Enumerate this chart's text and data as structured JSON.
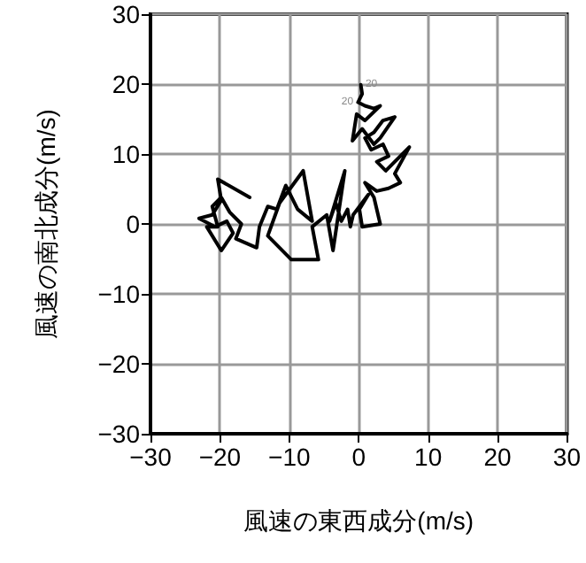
{
  "chart_data": {
    "type": "line",
    "xlabel": "風速の東西成分(m/s)",
    "ylabel": "風速の南北成分(m/s)",
    "xlim": [
      -30,
      30
    ],
    "ylim": [
      -30,
      30
    ],
    "xticks": [
      {
        "value": -30,
        "label": "−30"
      },
      {
        "value": -20,
        "label": "−20"
      },
      {
        "value": -10,
        "label": "−10"
      },
      0,
      10,
      20,
      30
    ],
    "yticks": [
      {
        "value": -30,
        "label": "−30"
      },
      {
        "value": -20,
        "label": "−20"
      },
      {
        "value": -10,
        "label": "−10"
      },
      0,
      10,
      20,
      30
    ],
    "grid": true,
    "marker": "none",
    "line_style": "solid",
    "annotations": [
      {
        "text": "20",
        "x": 0.3,
        "y": 19.9
      },
      {
        "text": "20",
        "x": -0.1,
        "y": 17.4
      }
    ],
    "series": [
      {
        "color": "#000000",
        "x": [
          0.3,
          0.5,
          -0.1,
          0.9,
          2.2,
          3.1,
          0.9,
          -0.3,
          -0.9,
          0.5,
          2.2,
          3.1,
          5.2,
          3.5,
          2.2,
          0.9,
          1.8,
          3.5,
          4.3,
          2.6,
          3.9,
          7.3,
          5.2,
          6.0,
          4.3,
          2.6,
          0.9,
          2.2,
          3.1,
          0.5,
          0.1,
          1.4,
          -0.8,
          -1.2,
          -1.6,
          -2.5,
          -3.3,
          -4.2,
          -2.0,
          -3.7,
          -4.6,
          -6.7,
          -5.8,
          -9.7,
          -13.1,
          -11.4,
          -8.0,
          -6.7,
          -8.8,
          -10.5,
          -11.8,
          -13.1,
          -14.3,
          -14.7,
          -17.7,
          -16.9,
          -18.6,
          -19.8,
          -21.1,
          -20.3,
          -21.9,
          -19.8,
          -18.1,
          -19.0,
          -20.7,
          -23.0,
          -21.1,
          -19.8,
          -20.3,
          -15.7
        ],
        "values": [
          19.9,
          18.6,
          17.4,
          16.9,
          16.5,
          16.9,
          14.8,
          15.7,
          11.9,
          13.6,
          11.4,
          12.3,
          15.3,
          14.8,
          13.1,
          12.3,
          10.6,
          11.4,
          9.7,
          8.9,
          7.6,
          11.0,
          7.2,
          5.9,
          5.1,
          4.7,
          5.9,
          3.8,
          0,
          -0.4,
          2.1,
          4.2,
          1.3,
          -0.4,
          2.1,
          0.4,
          3.0,
          0.4,
          7.6,
          -3.8,
          1.3,
          -0.4,
          -5.1,
          -5.1,
          -1.7,
          3.0,
          7.6,
          0.4,
          2.1,
          5.5,
          2.1,
          2.5,
          -0.4,
          -3.4,
          -2.1,
          0,
          1.7,
          3.8,
          2.5,
          -0.4,
          -0.4,
          -3.8,
          -1.3,
          0.4,
          -0.4,
          0.8,
          1.3,
          3.4,
          6.4,
          3.8
        ]
      }
    ]
  }
}
